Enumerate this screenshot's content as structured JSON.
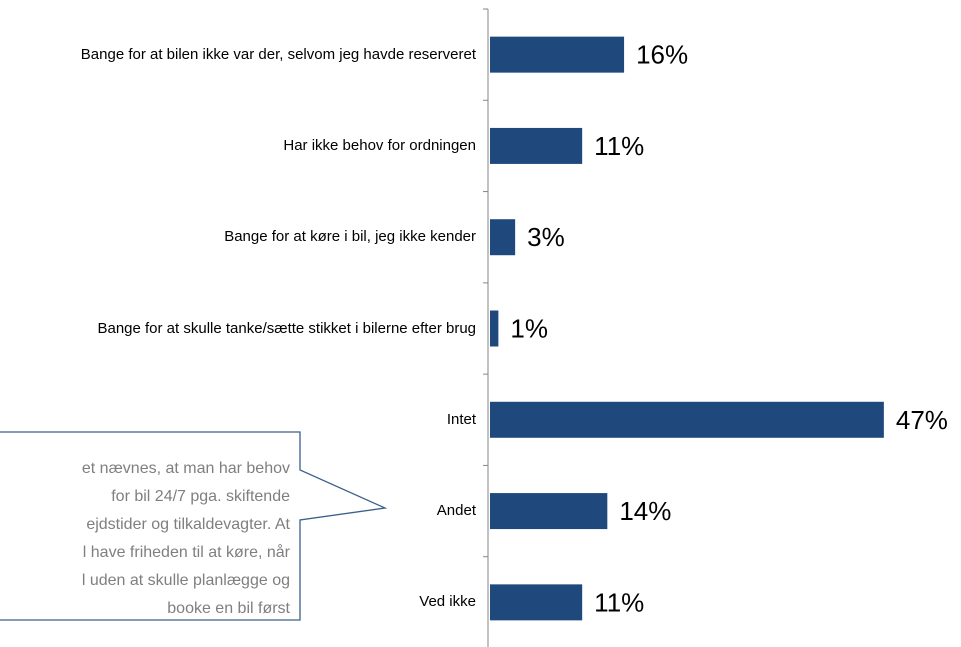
{
  "chart_data": {
    "type": "bar",
    "orientation": "horizontal",
    "categories": [
      "Bange for at bilen ikke var der, selvom jeg havde reserveret",
      "Har ikke behov for ordningen",
      "Bange for at køre i bil, jeg ikke kender",
      "Bange for at skulle tanke/sætte stikket i bilerne efter brug",
      "Intet",
      "Andet",
      "Ved ikke"
    ],
    "values": [
      16,
      11,
      3,
      1,
      47,
      14,
      11
    ],
    "value_labels": [
      "16%",
      "11%",
      "3%",
      "1%",
      "47%",
      "14%",
      "11%"
    ],
    "color": "#1f497d",
    "xlim": [
      0,
      50
    ],
    "annotation": [
      "et nævnes, at man har behov",
      "for bil 24/7 pga. skiftende",
      "ejdstider og tilkaldevagter. At",
      "l have friheden til at køre, når",
      "l uden at skulle planlægge og",
      "booke en bil først"
    ]
  }
}
